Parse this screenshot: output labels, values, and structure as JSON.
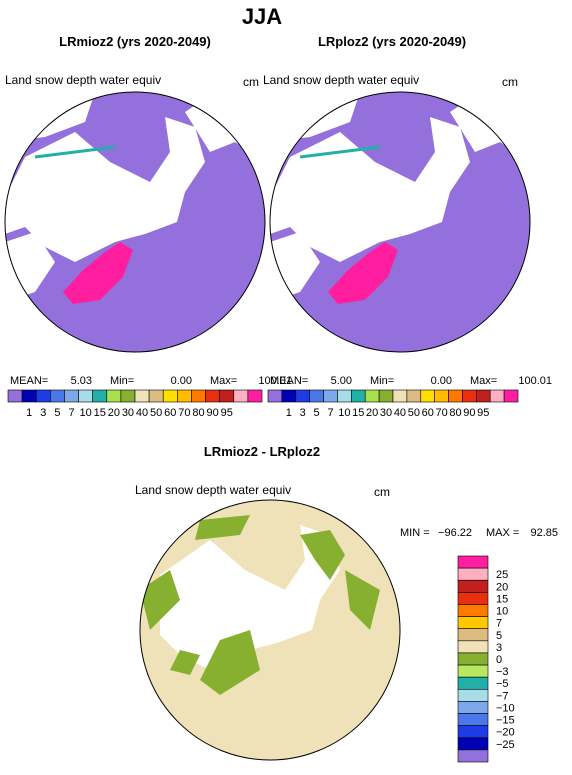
{
  "title": "JJA",
  "panels": [
    {
      "title": "LRmioz2 (yrs 2020-2049)",
      "variable": "Land snow depth water equiv",
      "units": "cm",
      "stats": [
        {
          "label": "MEAN=",
          "value": "5.03"
        },
        {
          "label": "Min=",
          "value": "0.00"
        },
        {
          "label": "Max=",
          "value": "100.01"
        }
      ]
    },
    {
      "title": "LRploz2 (yrs 2020-2049)",
      "variable": "Land snow depth water equiv",
      "units": "cm",
      "stats": [
        {
          "label": "MEAN=",
          "value": "5.00"
        },
        {
          "label": "Min=",
          "value": "0.00"
        },
        {
          "label": "Max=",
          "value": "100.01"
        }
      ]
    }
  ],
  "colorbar": {
    "colors": [
      "#9370db",
      "#0000b4",
      "#1e3ce6",
      "#4a78e8",
      "#7ea8ec",
      "#a8dce8",
      "#20b0a8",
      "#a8e050",
      "#88b030",
      "#f0e2b8",
      "#dcbc80",
      "#ffe000",
      "#ffbc00",
      "#ff7800",
      "#e83010",
      "#c02020",
      "#ffb0c0",
      "#ff1ea0"
    ],
    "labels": [
      "1",
      "3",
      "5",
      "7",
      "10",
      "15",
      "20",
      "30",
      "40",
      "50",
      "60",
      "70",
      "80",
      "90",
      "95"
    ]
  },
  "difference": {
    "title": "LRmioz2 - LRploz2",
    "variable": "Land snow depth water equiv",
    "units": "cm",
    "stats": [
      {
        "label": "MIN =",
        "value": "−96.22"
      },
      {
        "label": "MAX =",
        "value": "92.85"
      }
    ],
    "colorbar": {
      "colors": [
        "#ff1ea0",
        "#ffb0c0",
        "#c02020",
        "#e83010",
        "#ff7800",
        "#ffc800",
        "#dcbc80",
        "#f0e2b8",
        "#88b030",
        "#b8e860",
        "#20b0a8",
        "#a8dce8",
        "#7ea8ec",
        "#4a78e8",
        "#1e3ce6",
        "#0000b4",
        "#9370db"
      ],
      "labels": [
        "25",
        "20",
        "15",
        "10",
        "7",
        "5",
        "3",
        "0",
        "−3",
        "−5",
        "−7",
        "−10",
        "−15",
        "−20",
        "−25"
      ]
    }
  }
}
